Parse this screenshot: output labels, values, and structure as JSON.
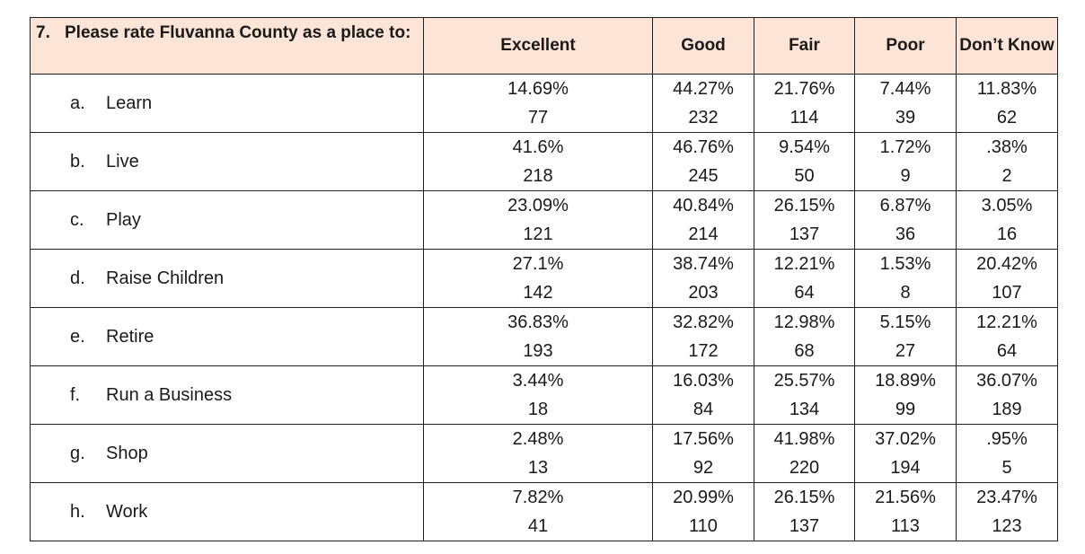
{
  "question": {
    "number": "7.",
    "text": "Please rate Fluvanna County as a place to:"
  },
  "columns": [
    "Excellent",
    "Good",
    "Fair",
    "Poor",
    "Don’t Know"
  ],
  "rows": [
    {
      "letter": "a.",
      "label": "Learn",
      "cells": [
        [
          "14.69%",
          "77"
        ],
        [
          "44.27%",
          "232"
        ],
        [
          "21.76%",
          "114"
        ],
        [
          "7.44%",
          "39"
        ],
        [
          "11.83%",
          "62"
        ]
      ]
    },
    {
      "letter": "b.",
      "label": "Live",
      "cells": [
        [
          "41.6%",
          "218"
        ],
        [
          "46.76%",
          "245"
        ],
        [
          "9.54%",
          "50"
        ],
        [
          "1.72%",
          "9"
        ],
        [
          ".38%",
          "2"
        ]
      ]
    },
    {
      "letter": "c.",
      "label": "Play",
      "cells": [
        [
          "23.09%",
          "121"
        ],
        [
          "40.84%",
          "214"
        ],
        [
          "26.15%",
          "137"
        ],
        [
          "6.87%",
          "36"
        ],
        [
          "3.05%",
          "16"
        ]
      ]
    },
    {
      "letter": "d.",
      "label": "Raise Children",
      "cells": [
        [
          "27.1%",
          "142"
        ],
        [
          "38.74%",
          "203"
        ],
        [
          "12.21%",
          "64"
        ],
        [
          "1.53%",
          "8"
        ],
        [
          "20.42%",
          "107"
        ]
      ]
    },
    {
      "letter": "e.",
      "label": "Retire",
      "cells": [
        [
          "36.83%",
          "193"
        ],
        [
          "32.82%",
          "172"
        ],
        [
          "12.98%",
          "68"
        ],
        [
          "5.15%",
          "27"
        ],
        [
          "12.21%",
          "64"
        ]
      ]
    },
    {
      "letter": "f.",
      "label": "Run a Business",
      "cells": [
        [
          "3.44%",
          "18"
        ],
        [
          "16.03%",
          "84"
        ],
        [
          "25.57%",
          "134"
        ],
        [
          "18.89%",
          "99"
        ],
        [
          "36.07%",
          "189"
        ]
      ]
    },
    {
      "letter": "g.",
      "label": "Shop",
      "cells": [
        [
          "2.48%",
          "13"
        ],
        [
          "17.56%",
          "92"
        ],
        [
          "41.98%",
          "220"
        ],
        [
          "37.02%",
          "194"
        ],
        [
          ".95%",
          "5"
        ]
      ]
    },
    {
      "letter": "h.",
      "label": "Work",
      "cells": [
        [
          "7.82%",
          "41"
        ],
        [
          "20.99%",
          "110"
        ],
        [
          "26.15%",
          "137"
        ],
        [
          "21.56%",
          "113"
        ],
        [
          "23.47%",
          "123"
        ]
      ]
    }
  ],
  "colors": {
    "header_background": "#fce4d6",
    "border": "#1f1f1f",
    "text": "#1a1a1a"
  }
}
